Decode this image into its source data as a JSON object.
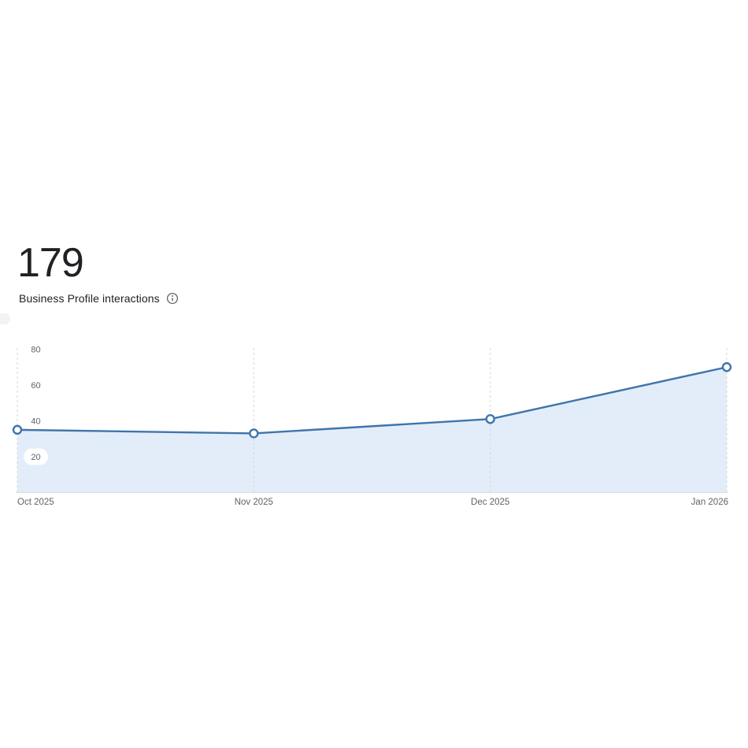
{
  "header": {
    "total": "179",
    "subtitle": "Business Profile interactions"
  },
  "chart_data": {
    "type": "area",
    "title": "Business Profile interactions",
    "total": 179,
    "x": [
      "Oct 2025",
      "Nov 2025",
      "Dec 2025",
      "Jan 2026"
    ],
    "values": [
      35,
      33,
      41,
      70
    ],
    "series": [
      {
        "name": "Business Profile interactions",
        "values": [
          35,
          33,
          41,
          70
        ]
      }
    ],
    "yticks": [
      20,
      40,
      60,
      80
    ],
    "ylim": [
      0,
      80
    ],
    "legend": "none",
    "grid": "vertical-dashed",
    "colors": {
      "line": "#3f75ab",
      "fill": "#e3edfa",
      "gridline": "#d4d7da",
      "axis_line": "#dadce0",
      "tick_label": "#5f6368",
      "point_fill": "#ffffff",
      "text": "#202124"
    }
  }
}
